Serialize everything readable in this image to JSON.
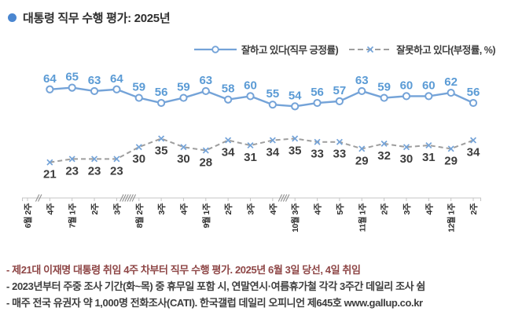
{
  "title": {
    "text": "대통령 직무 수행 평가: 2025년",
    "bullet_color": "#4a86d0"
  },
  "chart_data": {
    "type": "line",
    "unit": "%",
    "grid": false,
    "legend_position": "top-right",
    "ylim": [
      0,
      70
    ],
    "axis_color": "#c4c4c4",
    "tick_label_color": "#2e2e2e",
    "categories": [
      "6월 2주",
      "4주",
      "7월 1주",
      "2주",
      "3주",
      "8월 2주",
      "3주",
      "4주",
      "9월 1주",
      "2주",
      "3주",
      "4주",
      "10월 3주",
      "4주",
      "5주",
      "11월 1주",
      "2주",
      "3주",
      "4주",
      "12월 1주",
      "2주"
    ],
    "series": [
      {
        "name": "잘하고 있다(직무 긍정률)",
        "style": "solid",
        "marker": "circle",
        "line_color": "#74a3d8",
        "marker_color": "#74a3d8",
        "label_color": "#5b9bd5",
        "values": [
          null,
          64,
          65,
          63,
          64,
          59,
          56,
          59,
          63,
          58,
          60,
          55,
          54,
          56,
          57,
          63,
          59,
          60,
          60,
          62,
          56
        ]
      },
      {
        "name": "잘못하고 있다(부정률, %)",
        "style": "dashed",
        "marker": "x",
        "line_color": "#9e9e9e",
        "marker_color": "#74a3d8",
        "label_color": "#3d3d3d",
        "values": [
          null,
          21,
          23,
          23,
          23,
          30,
          35,
          30,
          28,
          34,
          31,
          34,
          35,
          33,
          33,
          29,
          32,
          30,
          31,
          29,
          34
        ]
      }
    ],
    "axis_breaks": [
      {
        "after_index": 0,
        "skipped_weeks": 1
      },
      {
        "after_index": 4,
        "skipped_weeks": 3
      },
      {
        "after_index": 11,
        "skipped_weeks": 2
      }
    ]
  },
  "footnotes": [
    {
      "text": "- 제21대 이재명 대통령 취임 4주 차부터 직무 수행 평가. 2025년 6월 3일 당선, 4일 취임",
      "color": "#8e4646"
    },
    {
      "text": "- 2023년부터 주중 조사 기간(화~목) 중 휴무일 포함 시, 연말연시·여름휴가철 각각 3주간 데일리 조사 쉼",
      "color": "#3d3d3d"
    },
    {
      "text": "- 매주 전국 유권자 약 1,000명 전화조사(CATI). 한국갤럽 데일리 오피니언 제645호 www.gallup.co.kr",
      "color": "#3d3d3d"
    }
  ]
}
